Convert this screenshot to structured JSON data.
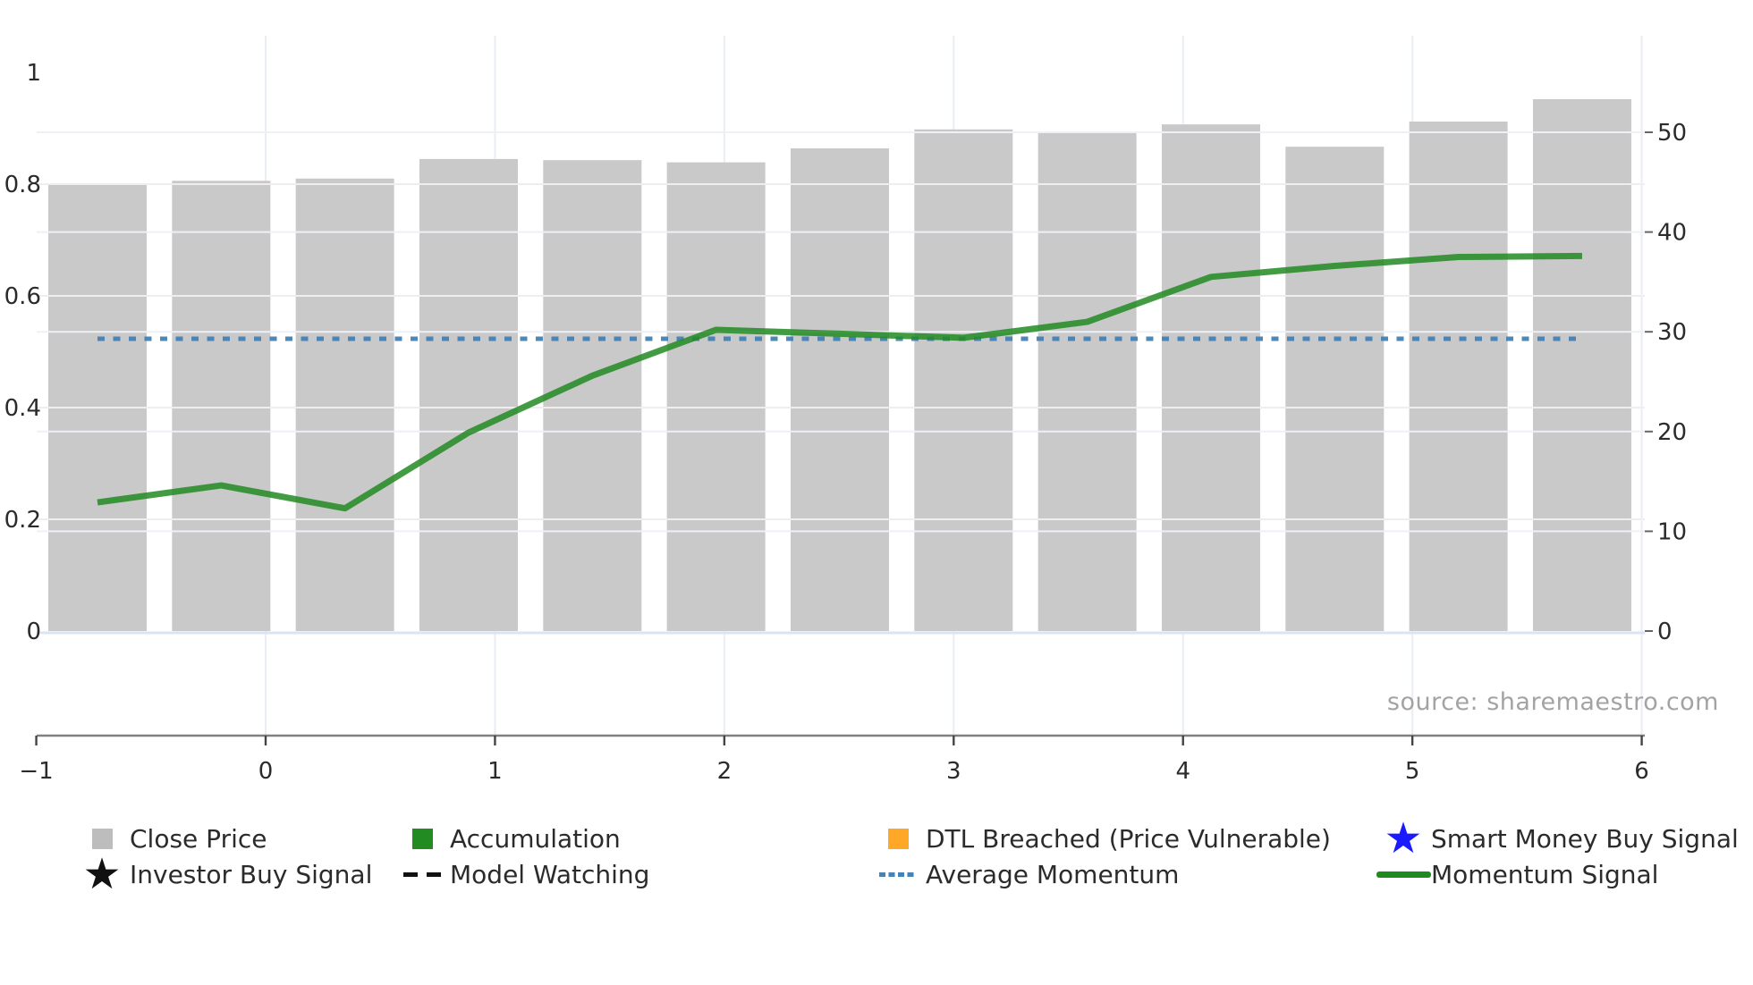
{
  "chart": {
    "source_note": "source: sharemaestro.com"
  },
  "chart_data": {
    "type": "bar",
    "subtype": "combo-bar-line-dual-axis",
    "title": "",
    "xlabel": "",
    "ylabel_left": "",
    "ylabel_right": "",
    "grid": true,
    "legend_position": "bottom",
    "x": [
      -0.73,
      -0.19,
      0.35,
      0.89,
      1.43,
      1.96,
      2.5,
      3.04,
      3.58,
      4.12,
      4.66,
      5.2,
      5.74
    ],
    "series": [
      {
        "name": "Close Price",
        "kind": "bar",
        "axis": "left",
        "color": "#c9c9c9",
        "values": [
          0.8,
          0.806,
          0.81,
          0.845,
          0.843,
          0.839,
          0.864,
          0.898,
          0.893,
          0.907,
          0.867,
          0.912,
          0.952
        ]
      },
      {
        "name": "Momentum Signal",
        "kind": "line",
        "axis": "right",
        "color": "#228B22",
        "values": [
          12.9,
          14.6,
          12.3,
          19.9,
          25.6,
          30.2,
          29.8,
          29.4,
          31.0,
          35.5,
          36.6,
          37.5,
          37.6
        ]
      },
      {
        "name": "Average Momentum",
        "kind": "hline-dotted",
        "axis": "right",
        "color": "#4682B4",
        "value": 29.3
      }
    ],
    "x_axis": {
      "ticks": [
        -1,
        0,
        1,
        2,
        3,
        4,
        5,
        6
      ],
      "tick_labels": [
        "−1",
        "0",
        "1",
        "2",
        "3",
        "4",
        "5",
        "6"
      ],
      "range": [
        -1.0,
        6.01
      ]
    },
    "left_axis": {
      "ticks": [
        0,
        0.2,
        0.4,
        0.6,
        0.8,
        1
      ],
      "tick_labels": [
        "0",
        "0.2",
        "0.4",
        "0.6",
        "0.8",
        "1"
      ],
      "range": [
        -0.19,
        1.07
      ]
    },
    "right_axis": {
      "ticks": [
        0,
        10,
        20,
        30,
        40,
        50
      ],
      "tick_labels": [
        "0",
        "10",
        "20",
        "30",
        "40",
        "50"
      ],
      "range": [
        -10.5,
        59.7
      ]
    }
  },
  "colors": {
    "bar_gray": "#c9c9c9",
    "momentum_green": "#228B22",
    "average_blue": "#4682B4",
    "dtl_orange": "#FFA726",
    "smart_blue": "#1a1aff",
    "signal_black": "#111111",
    "axis_spine": "#808080",
    "tick_text": "#2b2b2b",
    "source_text": "#a3a3a3"
  },
  "legend": {
    "items": [
      {
        "label": "Close Price",
        "marker": "square",
        "color": "#bdbdbd"
      },
      {
        "label": "Accumulation",
        "marker": "square",
        "color": "#228B22"
      },
      {
        "label": "DTL Breached (Price Vulnerable)",
        "marker": "square",
        "color": "#FFA726"
      },
      {
        "label": "Smart Money Buy Signal",
        "marker": "star",
        "color": "#1a1aff"
      },
      {
        "label": "Investor Buy Signal",
        "marker": "star",
        "color": "#111111"
      },
      {
        "label": "Model Watching",
        "marker": "dashes",
        "color": "#111111"
      },
      {
        "label": "Average Momentum",
        "marker": "dotted",
        "color": "#4682B4"
      },
      {
        "label": "Momentum Signal",
        "marker": "line",
        "color": "#1f8b1f"
      }
    ]
  }
}
